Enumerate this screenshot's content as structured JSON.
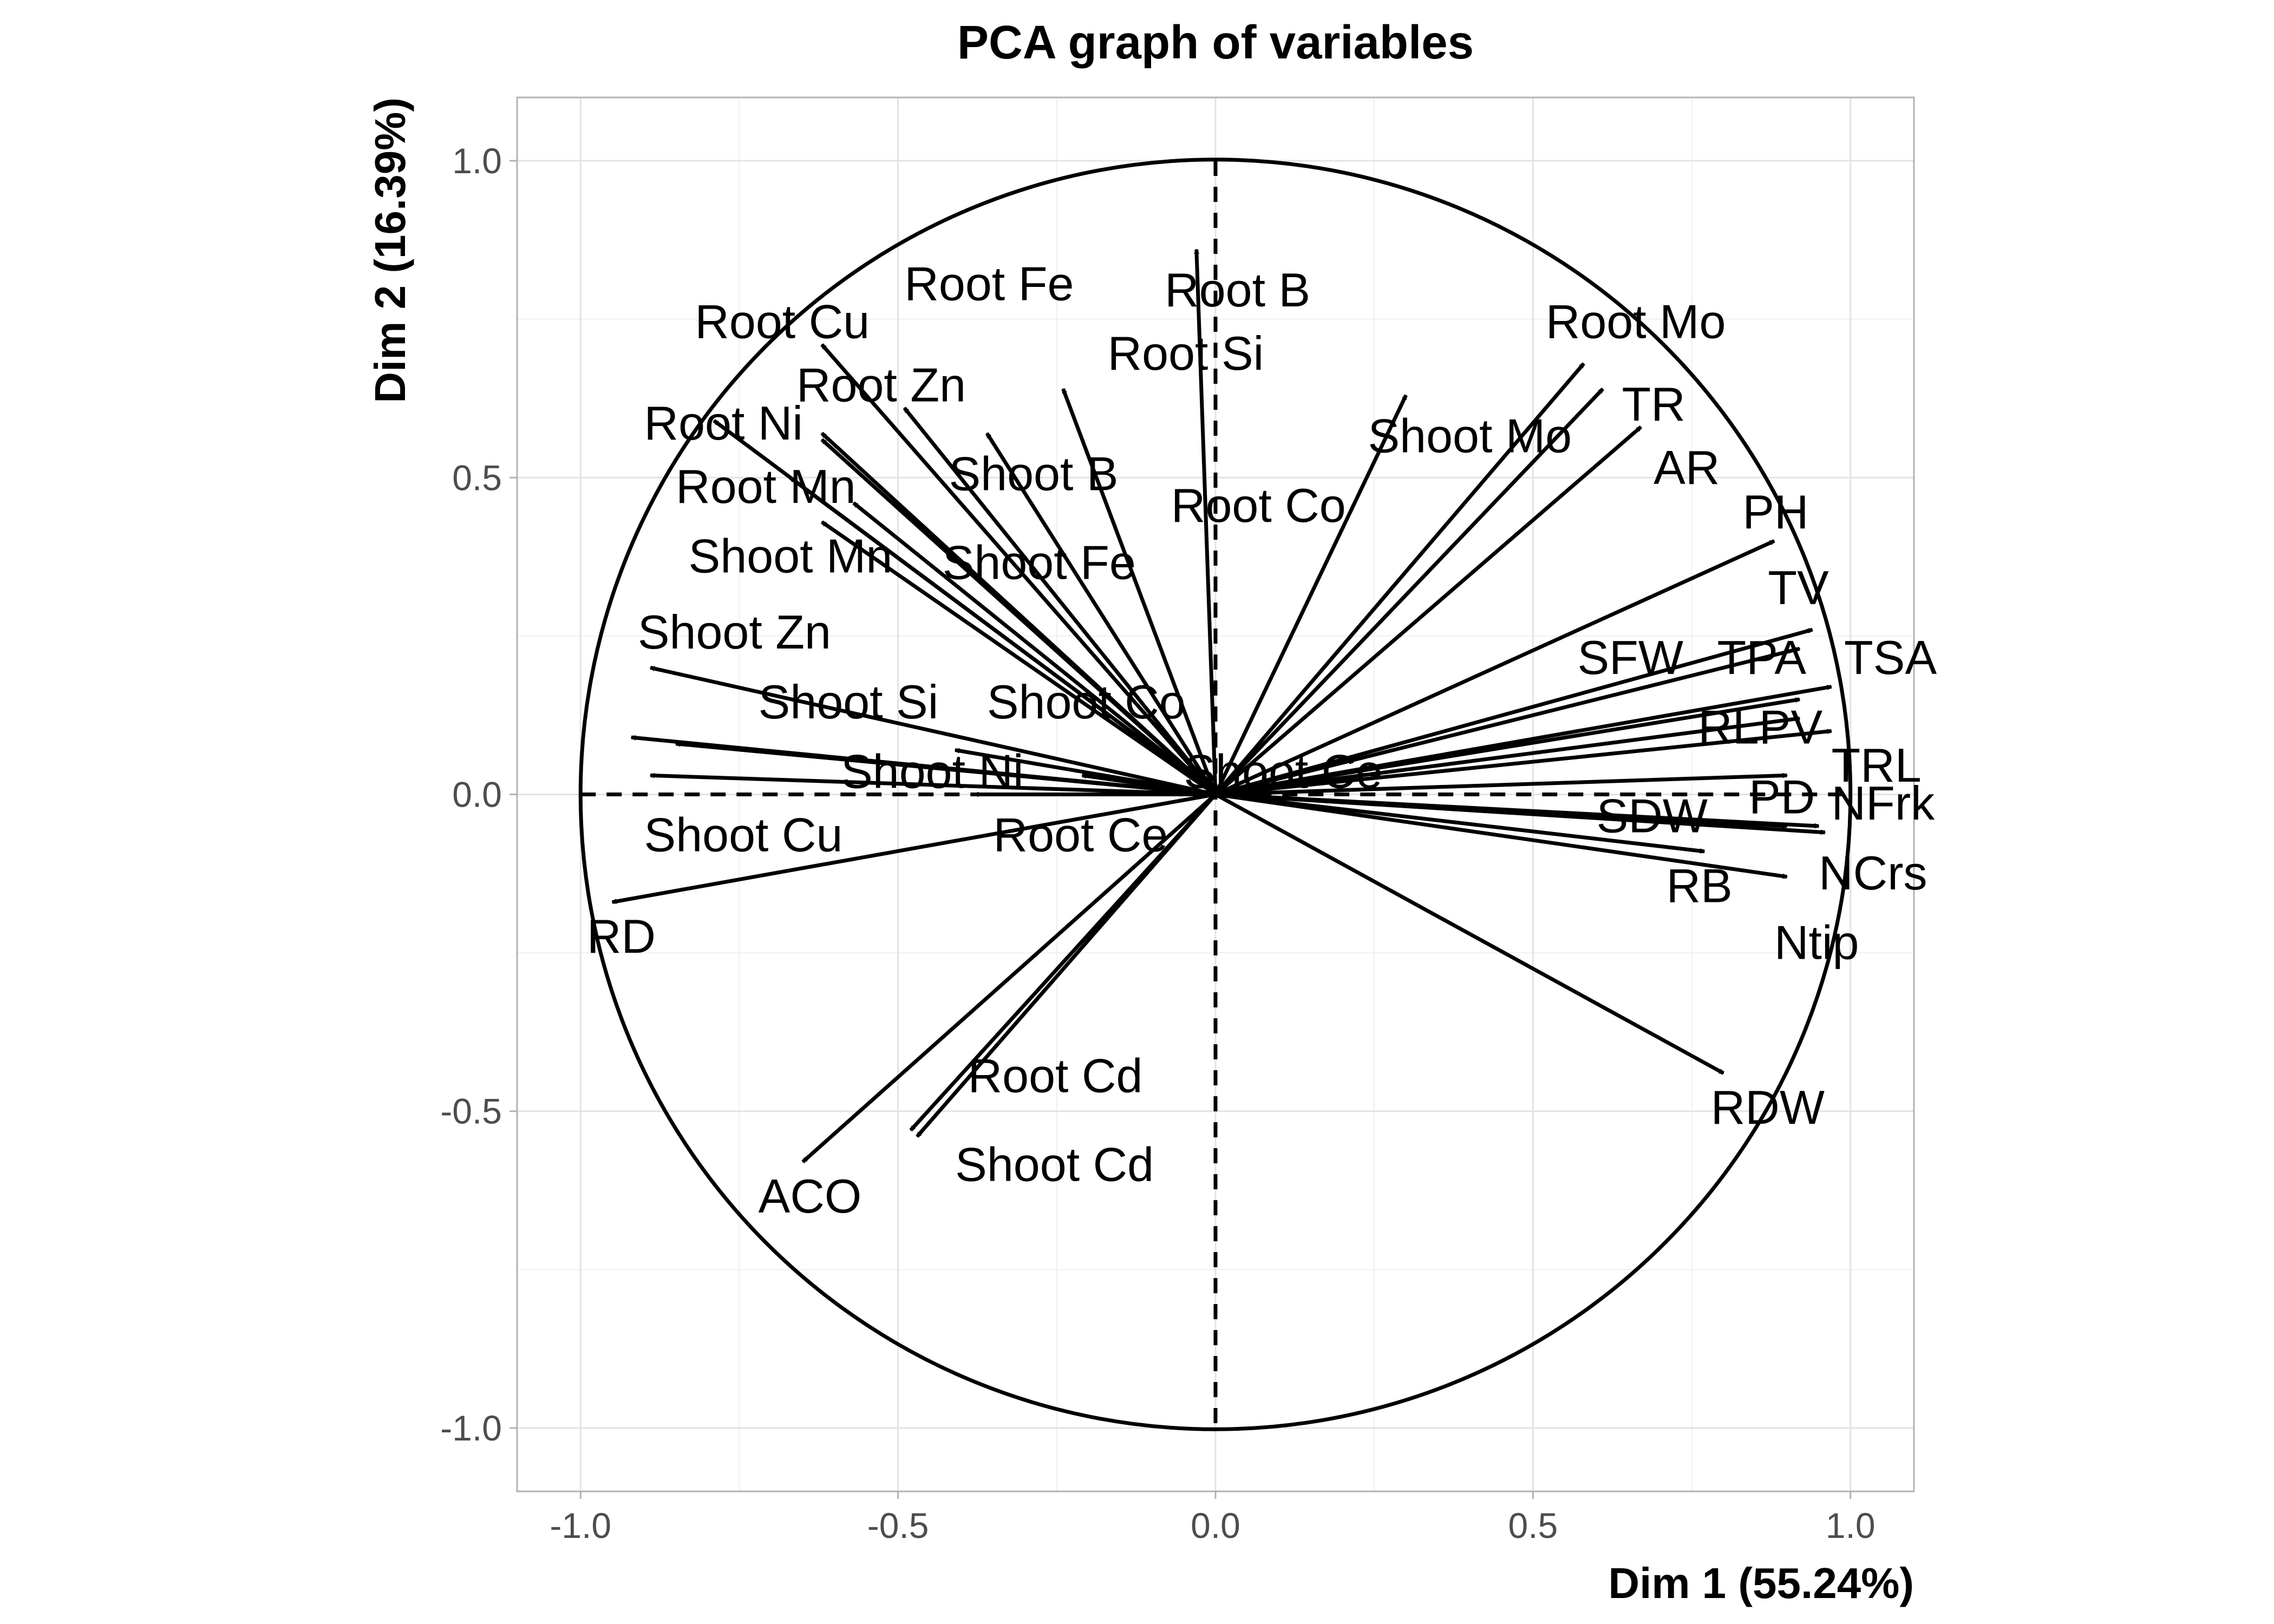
{
  "chart_data": {
    "type": "scatter",
    "subtype": "pca-correlation-circle",
    "title": "PCA graph of variables",
    "xlabel": "Dim 1 (55.24%)",
    "ylabel": "Dim 2 (16.39%)",
    "xlim": [
      -1.1,
      1.1
    ],
    "ylim": [
      -1.1,
      1.1
    ],
    "x_ticks": [
      "-1.0",
      "-0.5",
      "0.0",
      "0.5",
      "1.0"
    ],
    "y_ticks": [
      "1.0",
      "0.5",
      "0.0",
      "-0.5",
      "-1.0"
    ],
    "grid": true,
    "unit_circle": true,
    "reference_lines": "dashed x=0 and y=0",
    "vectors": [
      {
        "name": "Root B",
        "x": -0.03,
        "y": 0.86
      },
      {
        "name": "Root Fe",
        "x": -0.49,
        "y": 0.61
      },
      {
        "name": "Root Cu",
        "x": -0.62,
        "y": 0.71
      },
      {
        "name": "Root Si",
        "x": -0.24,
        "y": 0.64
      },
      {
        "name": "Root Zn",
        "x": -0.62,
        "y": 0.57
      },
      {
        "name": "Root Ni",
        "x": -0.79,
        "y": 0.59
      },
      {
        "name": "Root Co",
        "x": -0.36,
        "y": 0.57
      },
      {
        "name": "Shoot B",
        "x": -0.62,
        "y": 0.56
      },
      {
        "name": "Root Mn",
        "x": -0.67,
        "y": 0.5
      },
      {
        "name": "Shoot Fe",
        "x": -0.57,
        "y": 0.46
      },
      {
        "name": "Shoot Mn",
        "x": -0.62,
        "y": 0.43
      },
      {
        "name": "Shoot Zn",
        "x": -0.89,
        "y": 0.2
      },
      {
        "name": "Shoot Si",
        "x": -0.92,
        "y": 0.09
      },
      {
        "name": "Shoot Co",
        "x": -0.41,
        "y": 0.07
      },
      {
        "name": "Shoot Ni",
        "x": -0.89,
        "y": 0.03
      },
      {
        "name": "Shoot Ce",
        "x": -0.21,
        "y": 0.03
      },
      {
        "name": "Root Ce",
        "x": -0.38,
        "y": 0.0
      },
      {
        "name": "Shoot Cu",
        "x": -0.85,
        "y": 0.08
      },
      {
        "name": "RD",
        "x": -0.95,
        "y": -0.17
      },
      {
        "name": "Root Cd",
        "x": -0.48,
        "y": -0.53
      },
      {
        "name": "Shoot Cd",
        "x": -0.47,
        "y": -0.54
      },
      {
        "name": "ACO",
        "x": -0.65,
        "y": -0.58
      },
      {
        "name": "Shoot Mo",
        "x": 0.3,
        "y": 0.63
      },
      {
        "name": "Root Mo",
        "x": 0.58,
        "y": 0.68
      },
      {
        "name": "TR",
        "x": 0.61,
        "y": 0.64
      },
      {
        "name": "AR",
        "x": 0.67,
        "y": 0.58
      },
      {
        "name": "PH",
        "x": 0.88,
        "y": 0.4
      },
      {
        "name": "TV",
        "x": 0.94,
        "y": 0.26
      },
      {
        "name": "TSA",
        "x": 0.97,
        "y": 0.17
      },
      {
        "name": "TPA",
        "x": 0.92,
        "y": 0.23
      },
      {
        "name": "SFW",
        "x": 0.92,
        "y": 0.15
      },
      {
        "name": "RLPV",
        "x": 0.92,
        "y": 0.12
      },
      {
        "name": "TRL",
        "x": 0.97,
        "y": 0.1
      },
      {
        "name": "PD",
        "x": 0.9,
        "y": 0.03
      },
      {
        "name": "NFrk",
        "x": 0.96,
        "y": -0.06
      },
      {
        "name": "SDW",
        "x": 0.9,
        "y": -0.05
      },
      {
        "name": "RB",
        "x": 0.77,
        "y": -0.09
      },
      {
        "name": "NCrs",
        "x": 0.9,
        "y": -0.13
      },
      {
        "name": "Ntip",
        "x": 0.95,
        "y": -0.05
      },
      {
        "name": "RDW",
        "x": 0.8,
        "y": -0.44
      }
    ],
    "labels": [
      {
        "text": "Root B",
        "x": -0.08,
        "y": 0.79
      },
      {
        "text": "Root Fe",
        "x": -0.49,
        "y": 0.8
      },
      {
        "text": "Root Cu",
        "x": -0.82,
        "y": 0.74
      },
      {
        "text": "Root Si",
        "x": -0.17,
        "y": 0.69
      },
      {
        "text": "Root Zn",
        "x": -0.66,
        "y": 0.64
      },
      {
        "text": "Root Ni",
        "x": -0.9,
        "y": 0.58
      },
      {
        "text": "Root Co",
        "x": -0.07,
        "y": 0.45
      },
      {
        "text": "Shoot B",
        "x": -0.42,
        "y": 0.5
      },
      {
        "text": "Root Mn",
        "x": -0.85,
        "y": 0.48
      },
      {
        "text": "Shoot Fe",
        "x": -0.43,
        "y": 0.36
      },
      {
        "text": "Shoot Mn",
        "x": -0.83,
        "y": 0.37
      },
      {
        "text": "Shoot Zn",
        "x": -0.91,
        "y": 0.25
      },
      {
        "text": "Shoot Si",
        "x": -0.72,
        "y": 0.14
      },
      {
        "text": "Shoot Co",
        "x": -0.36,
        "y": 0.14
      },
      {
        "text": "Shoot Ni",
        "x": -0.59,
        "y": 0.03
      },
      {
        "text": "Shoot Ce",
        "x": -0.05,
        "y": 0.03
      },
      {
        "text": "Root Ce",
        "x": -0.35,
        "y": -0.07
      },
      {
        "text": "Shoot Cu",
        "x": -0.9,
        "y": -0.07
      },
      {
        "text": "RD",
        "x": -0.99,
        "y": -0.23
      },
      {
        "text": "Root Cd",
        "x": -0.39,
        "y": -0.45
      },
      {
        "text": "Shoot Cd",
        "x": -0.41,
        "y": -0.59
      },
      {
        "text": "ACO",
        "x": -0.72,
        "y": -0.64
      },
      {
        "text": "Shoot Mo",
        "x": 0.24,
        "y": 0.56
      },
      {
        "text": "Root Mo",
        "x": 0.52,
        "y": 0.74
      },
      {
        "text": "TR",
        "x": 0.64,
        "y": 0.61
      },
      {
        "text": "AR",
        "x": 0.69,
        "y": 0.51
      },
      {
        "text": "PH",
        "x": 0.83,
        "y": 0.44
      },
      {
        "text": "TV",
        "x": 0.87,
        "y": 0.32
      },
      {
        "text": "SFW",
        "x": 0.57,
        "y": 0.21
      },
      {
        "text": "TPA",
        "x": 0.79,
        "y": 0.21
      },
      {
        "text": "TSA",
        "x": 0.99,
        "y": 0.21
      },
      {
        "text": "RLPV",
        "x": 0.76,
        "y": 0.1
      },
      {
        "text": "TRL",
        "x": 0.97,
        "y": 0.04
      },
      {
        "text": "PD",
        "x": 0.84,
        "y": -0.01
      },
      {
        "text": "NFrk",
        "x": 0.97,
        "y": -0.02
      },
      {
        "text": "SDW",
        "x": 0.6,
        "y": -0.04
      },
      {
        "text": "RB",
        "x": 0.71,
        "y": -0.15
      },
      {
        "text": "NCrs",
        "x": 0.95,
        "y": -0.13
      },
      {
        "text": "Ntip",
        "x": 0.88,
        "y": -0.24
      },
      {
        "text": "RDW",
        "x": 0.78,
        "y": -0.5
      }
    ]
  }
}
